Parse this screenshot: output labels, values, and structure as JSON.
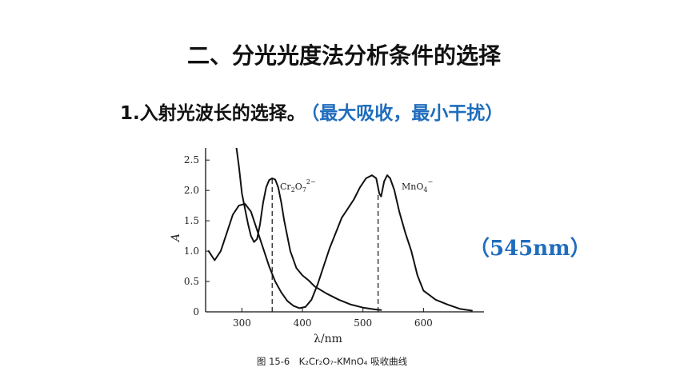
{
  "slide": {
    "title": "二、分光光度法分析条件的选择",
    "subtitle_main": "1.入射光波长的选择。",
    "subtitle_note": "（最大吸收，最小干扰）",
    "wavelength_note": "（545nm）"
  },
  "colors": {
    "accent_blue": "#1f6dbd",
    "text": "#111111",
    "curve": "#111111"
  },
  "chart_data": {
    "type": "line",
    "title": "",
    "caption": "图 15-6　K₂Cr₂O₇-KMnO₄ 吸收曲线",
    "xlabel": "λ/nm",
    "ylabel": "A",
    "xlim": [
      240,
      700
    ],
    "ylim": [
      0,
      2.7
    ],
    "x_ticks": [
      300,
      400,
      500,
      600
    ],
    "y_ticks": [
      0,
      0.5,
      1.0,
      1.5,
      2.0,
      2.5
    ],
    "y_tick_labels": [
      "0",
      "0.5",
      "1.0",
      "1.5",
      "2.0",
      "2.5"
    ],
    "grid": false,
    "series": [
      {
        "name": "Cr₂O₇²⁻",
        "label_main": "Cr",
        "label_sub1": "2",
        "label_mid": "O",
        "label_sub2": "7",
        "label_sup": "2−",
        "points": [
          [
            290,
            2.8
          ],
          [
            295,
            2.4
          ],
          [
            300,
            1.95
          ],
          [
            305,
            1.7
          ],
          [
            310,
            1.45
          ],
          [
            315,
            1.25
          ],
          [
            320,
            1.15
          ],
          [
            325,
            1.2
          ],
          [
            330,
            1.45
          ],
          [
            335,
            1.8
          ],
          [
            340,
            2.05
          ],
          [
            345,
            2.17
          ],
          [
            350,
            2.2
          ],
          [
            355,
            2.18
          ],
          [
            360,
            2.05
          ],
          [
            365,
            1.8
          ],
          [
            370,
            1.5
          ],
          [
            380,
            1.0
          ],
          [
            390,
            0.72
          ],
          [
            400,
            0.6
          ],
          [
            410,
            0.52
          ],
          [
            420,
            0.42
          ],
          [
            440,
            0.3
          ],
          [
            460,
            0.2
          ],
          [
            480,
            0.12
          ],
          [
            500,
            0.07
          ],
          [
            520,
            0.04
          ],
          [
            530,
            0.03
          ]
        ],
        "peak_x": 350
      },
      {
        "name": "MnO₄⁻",
        "label_main": "MnO",
        "label_sub": "4",
        "label_sup": "−",
        "points": [
          [
            245,
            1.0
          ],
          [
            255,
            0.85
          ],
          [
            265,
            1.0
          ],
          [
            275,
            1.3
          ],
          [
            285,
            1.6
          ],
          [
            295,
            1.75
          ],
          [
            305,
            1.78
          ],
          [
            315,
            1.65
          ],
          [
            325,
            1.35
          ],
          [
            335,
            1.05
          ],
          [
            345,
            0.75
          ],
          [
            355,
            0.5
          ],
          [
            365,
            0.32
          ],
          [
            375,
            0.18
          ],
          [
            385,
            0.1
          ],
          [
            395,
            0.06
          ],
          [
            405,
            0.08
          ],
          [
            415,
            0.2
          ],
          [
            425,
            0.45
          ],
          [
            435,
            0.75
          ],
          [
            445,
            1.05
          ],
          [
            455,
            1.3
          ],
          [
            465,
            1.55
          ],
          [
            475,
            1.7
          ],
          [
            485,
            1.85
          ],
          [
            495,
            2.05
          ],
          [
            505,
            2.2
          ],
          [
            515,
            2.25
          ],
          [
            522,
            2.2
          ],
          [
            527,
            1.95
          ],
          [
            530,
            1.9
          ],
          [
            535,
            2.15
          ],
          [
            540,
            2.25
          ],
          [
            545,
            2.2
          ],
          [
            552,
            2.0
          ],
          [
            560,
            1.65
          ],
          [
            570,
            1.3
          ],
          [
            580,
            1.0
          ],
          [
            590,
            0.6
          ],
          [
            600,
            0.35
          ],
          [
            620,
            0.2
          ],
          [
            640,
            0.12
          ],
          [
            660,
            0.05
          ],
          [
            680,
            0.02
          ]
        ],
        "peak_x": 525
      }
    ]
  }
}
